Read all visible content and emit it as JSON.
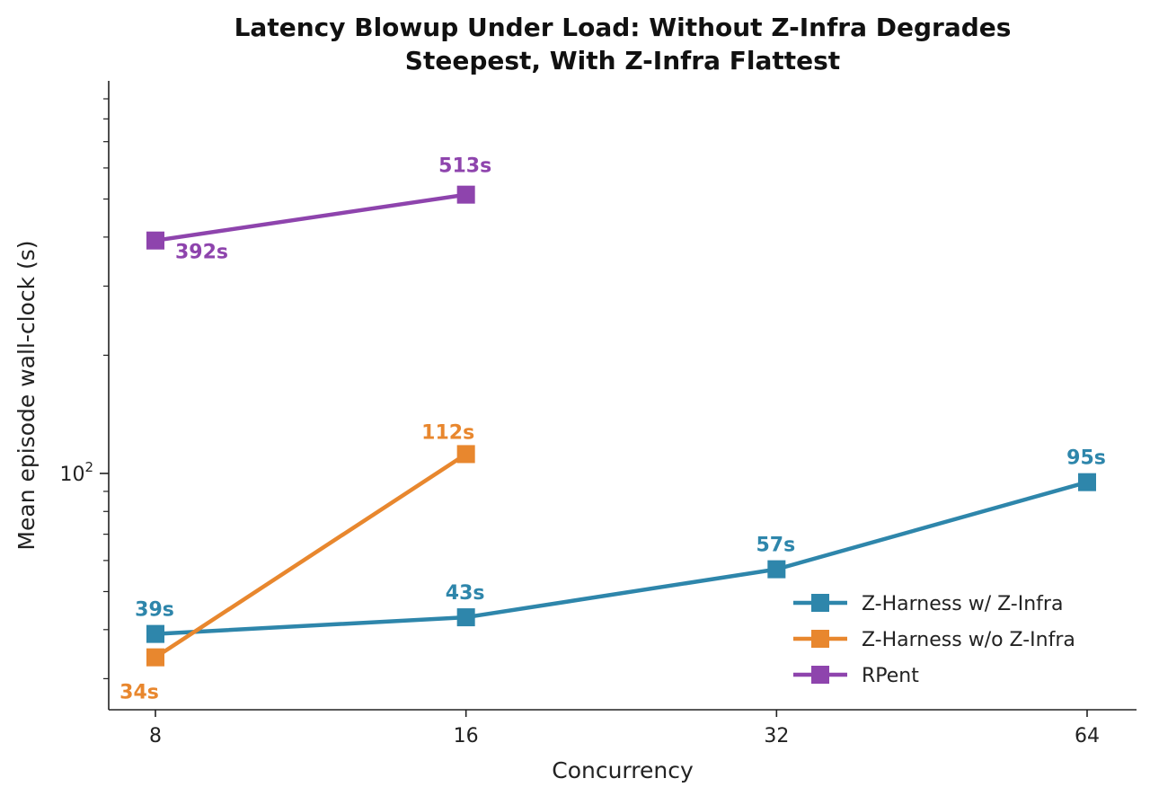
{
  "chart_data": {
    "type": "line",
    "title": [
      "Latency Blowup Under Load: Without Z-Infra Degrades",
      "Steepest, With Z-Infra Flattest"
    ],
    "xlabel": "Concurrency",
    "ylabel": "Mean episode wall-clock (s)",
    "x_scale": "log2",
    "y_scale": "log",
    "x_ticks": [
      8,
      16,
      32,
      64
    ],
    "x_tick_labels": [
      "8",
      "16",
      "32",
      "64"
    ],
    "ylim": [
      25,
      1000
    ],
    "y_major_tick": 100,
    "y_major_tick_label": "10^2",
    "grid": false,
    "legend_placement": "lower-right",
    "series": [
      {
        "name": "Z-Harness w/ Z-Infra",
        "color": "#2e86ab",
        "marker": "square",
        "x": [
          8,
          16,
          32,
          64
        ],
        "values": [
          39,
          43,
          57,
          95
        ],
        "labels": [
          "39s",
          "43s",
          "57s",
          "95s"
        ]
      },
      {
        "name": "Z-Harness w/o Z-Infra",
        "color": "#e8872e",
        "marker": "square",
        "x": [
          8,
          16
        ],
        "values": [
          34,
          112
        ],
        "labels": [
          "34s",
          "112s"
        ]
      },
      {
        "name": "RPent",
        "color": "#8e44ad",
        "marker": "square",
        "x": [
          8,
          16
        ],
        "values": [
          392,
          513
        ],
        "labels": [
          "392s",
          "513s"
        ]
      }
    ]
  }
}
